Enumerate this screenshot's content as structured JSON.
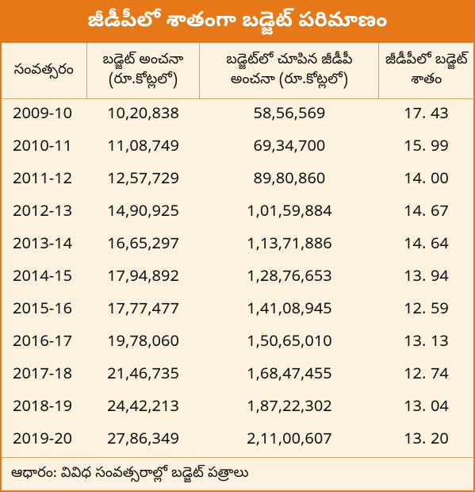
{
  "title": "జీడీపీలో శాతంగా బడ్జెట్ పరిమాణం",
  "columns": [
    "సంవత్సరం",
    "బడ్జెట్ అంచనా (రూ.కోట్లలో)",
    "బడ్జెట్‌లో చూపిన జీడీపీ అంచనా (రూ.కోట్లలో)",
    "జీడీపీలో బడ్జెట్ శాతం"
  ],
  "rows": [
    [
      "2009-10",
      "10,20,838",
      "58,56,569",
      "17. 43"
    ],
    [
      "2010-11",
      "11,08,749",
      "69,34,700",
      "15. 99"
    ],
    [
      "2011-12",
      "12,57,729",
      "89,80,860",
      "14. 00"
    ],
    [
      "2012-13",
      "14,90,925",
      "1,01,59,884",
      "14. 67"
    ],
    [
      "2013-14",
      "16,65,297",
      "1,13,71,886",
      "14. 64"
    ],
    [
      "2014-15",
      "17,94,892",
      "1,28,76,653",
      "13. 94"
    ],
    [
      "2015-16",
      "17,77,477",
      "1,41,08,945",
      "12. 59"
    ],
    [
      "2016-17",
      "19,78,060",
      "1,50,65,010",
      "13. 13"
    ],
    [
      "2017-18",
      "21,46,735",
      "1,68,47,455",
      "12. 74"
    ],
    [
      "2018-19",
      "24,42,213",
      "1,87,22,302",
      "13. 04"
    ],
    [
      "2019-20",
      "27,86,349",
      "2,11,00,607",
      "13. 20"
    ]
  ],
  "footer": "ఆధారం: వివిధ సంవత్సరాల్లో బడ్జెట్ పత్రాలు",
  "style": {
    "accent": "#e67817",
    "bg": "#fdf2df",
    "border": "#c9a96a",
    "title_fontsize": 26,
    "header_fontsize": 18,
    "cell_fontsize": 20
  }
}
